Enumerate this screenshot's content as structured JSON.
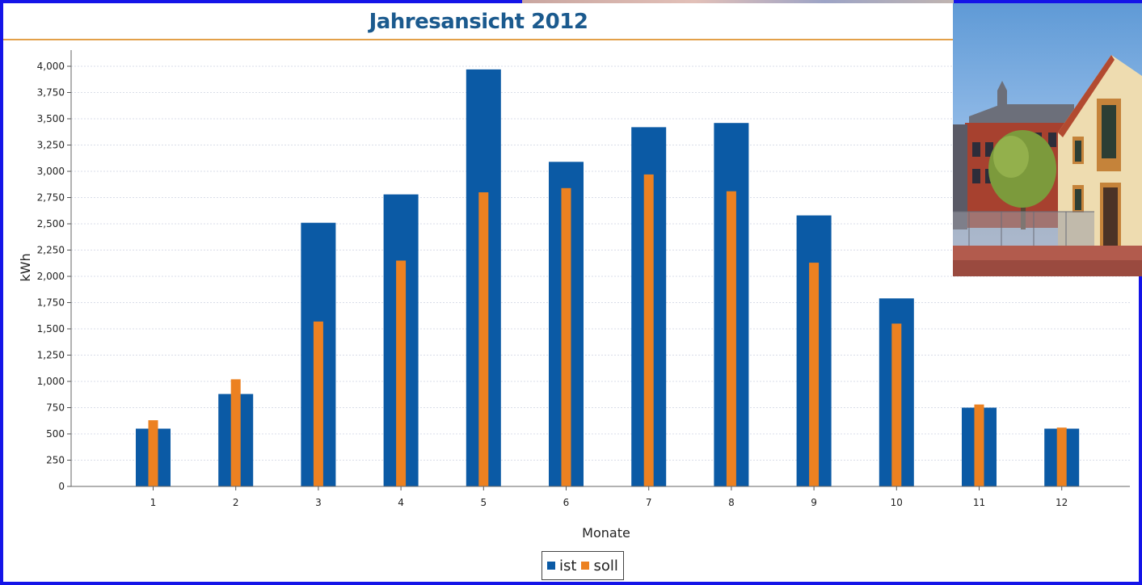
{
  "chart_data": {
    "type": "bar",
    "title": "Jahresansicht 2012",
    "xlabel": "Monate",
    "ylabel": "kWh",
    "categories": [
      "1",
      "2",
      "3",
      "4",
      "5",
      "6",
      "7",
      "8",
      "9",
      "10",
      "11",
      "12"
    ],
    "series": [
      {
        "name": "ist",
        "color": "#0b5aa5",
        "values": [
          550,
          880,
          2510,
          2780,
          3970,
          3090,
          3420,
          3460,
          2580,
          1790,
          750,
          550
        ]
      },
      {
        "name": "soll",
        "color": "#ec8121",
        "values": [
          630,
          1020,
          1570,
          2150,
          2800,
          2840,
          2970,
          2810,
          2130,
          1550,
          780,
          560
        ]
      }
    ],
    "ylim": [
      0,
      4100
    ],
    "yticks": [
      0,
      250,
      500,
      750,
      1000,
      1250,
      1500,
      1750,
      2000,
      2250,
      2500,
      2750,
      3000,
      3250,
      3500,
      3750,
      4000
    ],
    "ytick_labels": [
      "0",
      "250",
      "500",
      "750",
      "1,000",
      "1,250",
      "1,500",
      "1,750",
      "2,000",
      "2,250",
      "2,500",
      "2,750",
      "3,000",
      "3,250",
      "3,500",
      "3,750",
      "4,000"
    ],
    "grid": true,
    "legend_position": "bottom-center"
  },
  "colors": {
    "frame_border": "#1414e8",
    "title_text": "#1b5a8e",
    "title_rule": "#e3a049",
    "ist": "#0b5aa5",
    "soll": "#ec8121"
  }
}
